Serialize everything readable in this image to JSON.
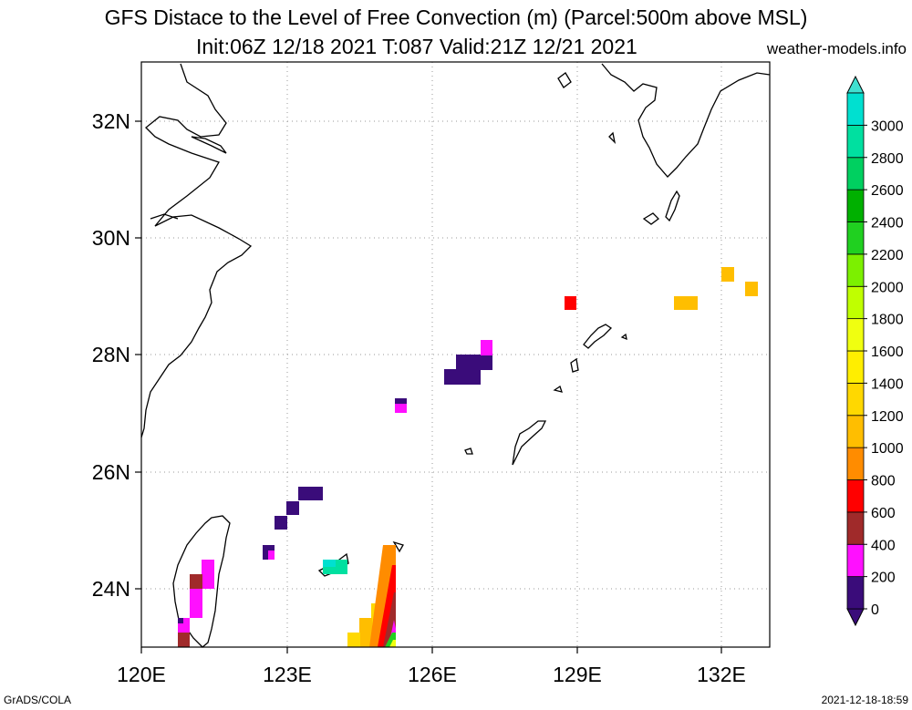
{
  "title_line1": "GFS Distace to the Level of Free Convection (m) (Parcel:500m above MSL)",
  "title_line2": "Init:06Z 12/18 2021 T:087 Valid:21Z 12/21 2021",
  "website": "weather-models.info",
  "footer_left": "GrADS/COLA",
  "footer_right": "2021-12-18-18:59",
  "map": {
    "lon_range": [
      120,
      133
    ],
    "lat_range": [
      23,
      33
    ],
    "lon_labels": [
      "120E",
      "123E",
      "126E",
      "129E",
      "132E"
    ],
    "lat_labels": [
      "24N",
      "26N",
      "28N",
      "30N",
      "32N"
    ],
    "grid": true
  },
  "colorbar": {
    "labels": [
      "0",
      "200",
      "400",
      "600",
      "800",
      "1000",
      "1200",
      "1400",
      "1600",
      "1800",
      "2000",
      "2200",
      "2400",
      "2600",
      "2800",
      "3000"
    ],
    "colors": [
      "#3a0c7a",
      "#ff10ff",
      "#a02a2a",
      "#ff0000",
      "#ff8c00",
      "#ffbe00",
      "#ffd800",
      "#ffee00",
      "#f0ff10",
      "#c0ff00",
      "#7cf000",
      "#20d020",
      "#00b000",
      "#00d060",
      "#00e0a0",
      "#00e0d0"
    ],
    "top_arrow_color": "#40e0d0",
    "bottom_arrow_color": "#3a0c7a"
  }
}
